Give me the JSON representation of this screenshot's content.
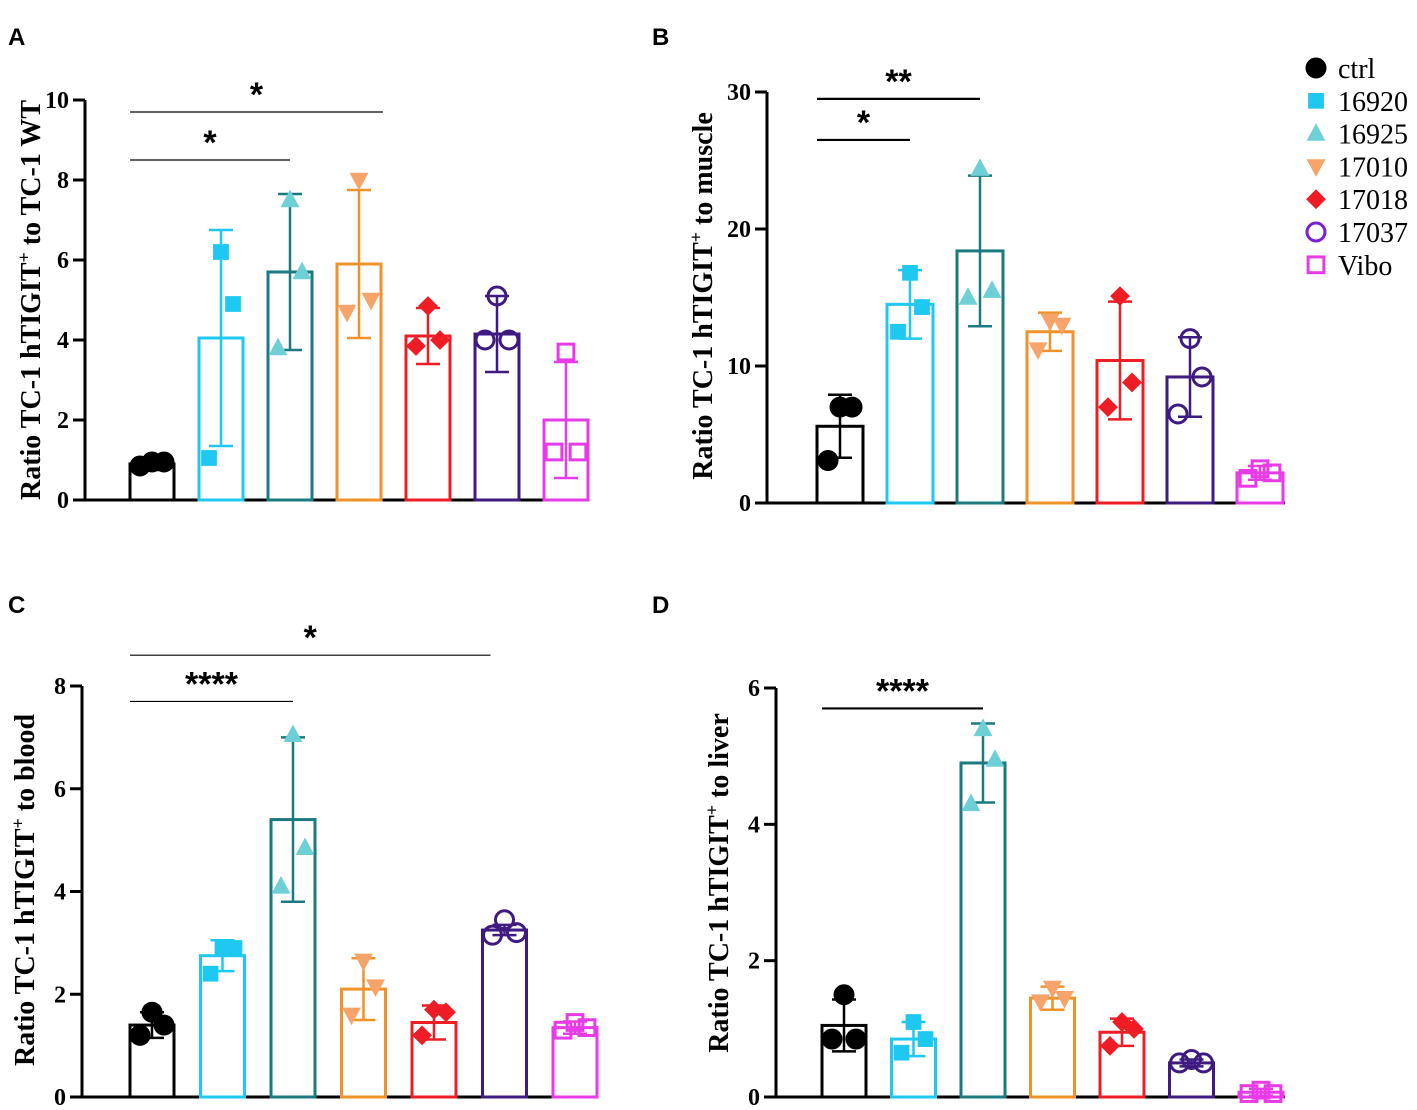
{
  "groups": [
    {
      "name": "ctrl",
      "color": "#000000",
      "marker": "circle",
      "filled": true
    },
    {
      "name": "16920",
      "color": "#1ec8f0",
      "marker": "square",
      "filled": true
    },
    {
      "name": "16925",
      "color": "#6fcfd6",
      "fill_alt": "#1a7a80",
      "marker": "triangle",
      "filled": true
    },
    {
      "name": "17010",
      "color": "#f7a46a",
      "fill_alt": "#f0922a",
      "marker": "triangle-down",
      "filled": true
    },
    {
      "name": "17018",
      "color": "#ee1c24",
      "marker": "diamond",
      "filled": true
    },
    {
      "name": "17037",
      "color": "#7a1fd6",
      "fill_alt": "#3f1a80",
      "marker": "circle",
      "filled": false
    },
    {
      "name": "Vibo",
      "color": "#e83be8",
      "marker": "square",
      "filled": false
    }
  ],
  "chart_data": [
    {
      "id": "A",
      "label": "A",
      "type": "bar",
      "ylabel_main": "Ratio TC-1 hTIGIT",
      "ylabel_sup": "+",
      "ylabel_rest": " to TC-1 WT",
      "ylim": [
        0,
        10
      ],
      "yticks": [
        "0",
        "2",
        "4",
        "6",
        "8",
        "10"
      ],
      "ytick_values": [
        0,
        2,
        4,
        6,
        8,
        10
      ],
      "bar_colors": [
        "#000000",
        "#1ec8f0",
        "#1a7a80",
        "#f0922a",
        "#ee1c24",
        "#3f1a80",
        "#e83be8"
      ],
      "means": [
        0.9,
        4.05,
        5.7,
        5.9,
        4.1,
        4.15,
        2.0
      ],
      "errors": [
        0.15,
        2.7,
        1.95,
        1.85,
        0.7,
        0.95,
        1.45
      ],
      "points": [
        [
          0.85,
          0.95,
          0.95
        ],
        [
          1.05,
          4.9,
          6.2
        ],
        [
          3.8,
          5.7,
          7.5
        ],
        [
          4.7,
          5.0,
          8.0
        ],
        [
          3.85,
          4.0,
          4.85
        ],
        [
          4.0,
          4.0,
          5.1
        ],
        [
          1.2,
          1.2,
          3.7
        ]
      ],
      "significance": [
        {
          "from": 0,
          "to": 2,
          "stars": "*",
          "y": 8.5
        },
        {
          "from": 0,
          "to": 3,
          "stars": "*",
          "y": 9.7
        }
      ]
    },
    {
      "id": "B",
      "label": "B",
      "type": "bar",
      "ylabel_main": "Ratio TC-1 hTIGIT",
      "ylabel_sup": "+",
      "ylabel_rest": " to muscle",
      "ylim": [
        0,
        30
      ],
      "yticks": [
        "0",
        "10",
        "20",
        "30"
      ],
      "ytick_values": [
        0,
        10,
        20,
        30
      ],
      "bar_colors": [
        "#000000",
        "#1ec8f0",
        "#1a7a80",
        "#f0922a",
        "#ee1c24",
        "#3f1a80",
        "#e83be8"
      ],
      "means": [
        5.6,
        14.5,
        18.4,
        12.5,
        10.4,
        9.2,
        2.2
      ],
      "errors": [
        2.3,
        2.5,
        5.5,
        1.4,
        4.3,
        2.9,
        0.5
      ],
      "points": [
        [
          3.1,
          7.0,
          7.0
        ],
        [
          12.5,
          14.3,
          16.8
        ],
        [
          15.0,
          15.5,
          24.4
        ],
        [
          11.2,
          13.0,
          13.3
        ],
        [
          7.0,
          8.8,
          15.1
        ],
        [
          6.5,
          9.2,
          12.0
        ],
        [
          1.8,
          2.2,
          2.5
        ]
      ],
      "significance": [
        {
          "from": 0,
          "to": 1,
          "stars": "*",
          "y": 26.5
        },
        {
          "from": 0,
          "to": 2,
          "stars": "**",
          "y": 29.5
        }
      ]
    },
    {
      "id": "C",
      "label": "C",
      "type": "bar",
      "ylabel_main": "Ratio TC-1 hTIGIT",
      "ylabel_sup": "+",
      "ylabel_rest": " to blood",
      "ylim": [
        0,
        8
      ],
      "yticks": [
        "0",
        "2",
        "4",
        "6",
        "8"
      ],
      "ytick_values": [
        0,
        2,
        4,
        6,
        8
      ],
      "bar_colors": [
        "#000000",
        "#1ec8f0",
        "#1a7a80",
        "#f0922a",
        "#ee1c24",
        "#3f1a80",
        "#e83be8"
      ],
      "means": [
        1.4,
        2.75,
        5.4,
        2.1,
        1.45,
        3.25,
        1.35
      ],
      "errors": [
        0.25,
        0.3,
        1.6,
        0.6,
        0.33,
        0.1,
        0.12
      ],
      "points": [
        [
          1.2,
          1.4,
          1.65
        ],
        [
          2.4,
          2.9,
          2.9
        ],
        [
          4.1,
          4.85,
          7.05
        ],
        [
          1.6,
          2.15,
          2.65
        ],
        [
          1.2,
          1.65,
          1.7
        ],
        [
          3.15,
          3.2,
          3.45
        ],
        [
          1.3,
          1.35,
          1.45
        ]
      ],
      "significance": [
        {
          "from": 0,
          "to": 2,
          "stars": "****",
          "y": 7.7
        },
        {
          "from": 0,
          "to": 5,
          "stars": "*",
          "y": 8.6
        }
      ]
    },
    {
      "id": "D",
      "label": "D",
      "type": "bar",
      "ylabel_main": "Ratio TC-1 hTIGIT",
      "ylabel_sup": "+",
      "ylabel_rest": " to liver",
      "ylim": [
        0,
        6
      ],
      "yticks": [
        "0",
        "2",
        "4",
        "6"
      ],
      "ytick_values": [
        0,
        2,
        4,
        6
      ],
      "bar_colors": [
        "#000000",
        "#1ec8f0",
        "#1a7a80",
        "#f0922a",
        "#ee1c24",
        "#3f1a80",
        "#e83be8"
      ],
      "means": [
        1.05,
        0.85,
        4.9,
        1.45,
        0.95,
        0.5,
        0.07
      ],
      "errors": [
        0.38,
        0.25,
        0.58,
        0.17,
        0.2,
        0.05,
        0.05
      ],
      "points": [
        [
          0.85,
          0.85,
          1.5
        ],
        [
          0.65,
          0.85,
          1.1
        ],
        [
          4.3,
          4.95,
          5.4
        ],
        [
          1.4,
          1.45,
          1.6
        ],
        [
          0.75,
          1.0,
          1.1
        ],
        [
          0.5,
          0.5,
          0.55
        ],
        [
          0.05,
          0.05,
          0.1
        ]
      ],
      "significance": [
        {
          "from": 0,
          "to": 2,
          "stars": "****",
          "y": 5.7
        }
      ]
    }
  ]
}
